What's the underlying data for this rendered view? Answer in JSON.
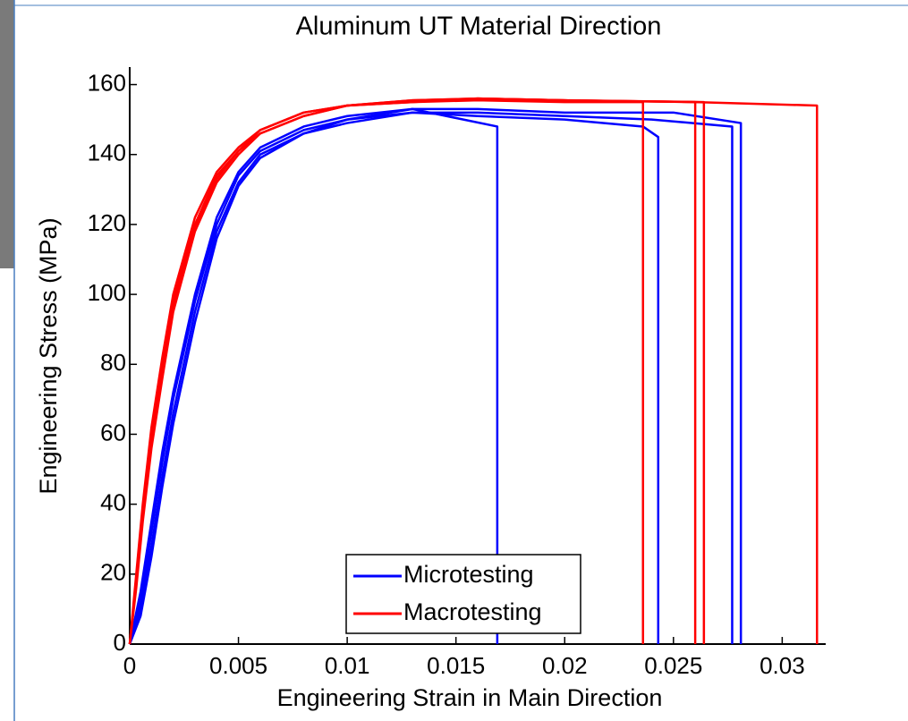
{
  "chart_data": {
    "type": "line",
    "title": "Aluminum UT Material Direction",
    "x_label": "Engineering Strain in Main Direction",
    "y_label": "Engineering Stress (MPa)",
    "xlim": [
      0,
      0.032
    ],
    "ylim": [
      0,
      165
    ],
    "xticks": [
      0,
      0.005,
      0.01,
      0.015,
      0.02,
      0.025,
      0.03
    ],
    "yticks": [
      0,
      20,
      40,
      60,
      80,
      100,
      120,
      140,
      160
    ],
    "grid": false,
    "legend": "lower center",
    "series": [
      {
        "name": "Microtesting",
        "color": "#0000ff",
        "curves": [
          {
            "x": [
              0,
              0.0005,
              0.001,
              0.0015,
              0.002,
              0.003,
              0.004,
              0.005,
              0.006,
              0.008,
              0.01,
              0.013,
              0.0169,
              0.0169
            ],
            "values": [
              0,
              15,
              35,
              55,
              72,
              100,
              122,
              135,
              142,
              148,
              151,
              153,
              148,
              0
            ]
          },
          {
            "x": [
              0,
              0.0005,
              0.001,
              0.0015,
              0.002,
              0.003,
              0.004,
              0.005,
              0.006,
              0.008,
              0.01,
              0.013,
              0.016,
              0.02,
              0.0236,
              0.0243,
              0.0243
            ],
            "values": [
              0,
              12,
              32,
              52,
              70,
              98,
              120,
              134,
              141,
              147,
              150,
              152,
              151,
              150,
              148,
              145,
              0
            ]
          },
          {
            "x": [
              0,
              0.0005,
              0.001,
              0.0015,
              0.002,
              0.003,
              0.004,
              0.005,
              0.006,
              0.008,
              0.01,
              0.013,
              0.016,
              0.02,
              0.024,
              0.0277,
              0.0277
            ],
            "values": [
              0,
              10,
              28,
              48,
              66,
              95,
              118,
              132,
              140,
              146,
              149,
              152,
              152,
              151,
              150,
              148,
              0
            ]
          },
          {
            "x": [
              0,
              0.0005,
              0.001,
              0.0015,
              0.002,
              0.003,
              0.004,
              0.005,
              0.006,
              0.008,
              0.01,
              0.013,
              0.016,
              0.02,
              0.025,
              0.0281,
              0.0281
            ],
            "values": [
              0,
              8,
              25,
              45,
              63,
              92,
              116,
              131,
              139,
              146,
              150,
              153,
              153,
              152,
              152,
              149,
              0
            ]
          }
        ]
      },
      {
        "name": "Macrotesting",
        "color": "#ff0000",
        "curves": [
          {
            "x": [
              0,
              0.0003,
              0.0006,
              0.001,
              0.0015,
              0.002,
              0.003,
              0.004,
              0.005,
              0.006,
              0.008,
              0.01,
              0.013,
              0.016,
              0.02,
              0.0236,
              0.0236
            ],
            "values": [
              0,
              20,
              40,
              62,
              82,
              100,
              122,
              135,
              142,
              147,
              152,
              154,
              155,
              155.5,
              155,
              155,
              0
            ]
          },
          {
            "x": [
              0,
              0.0003,
              0.0006,
              0.001,
              0.0015,
              0.002,
              0.003,
              0.004,
              0.005,
              0.006,
              0.008,
              0.01,
              0.013,
              0.016,
              0.02,
              0.026,
              0.026
            ],
            "values": [
              0,
              18,
              38,
              60,
              80,
              98,
              120,
              134,
              141,
              147,
              152,
              154,
              155,
              156,
              155.5,
              155,
              0
            ]
          },
          {
            "x": [
              0,
              0.0003,
              0.0006,
              0.001,
              0.0015,
              0.002,
              0.003,
              0.004,
              0.005,
              0.006,
              0.008,
              0.01,
              0.013,
              0.016,
              0.02,
              0.0264,
              0.0264
            ],
            "values": [
              0,
              17,
              36,
              58,
              78,
              96,
              119,
              133,
              141,
              146,
              151,
              154,
              155.5,
              156,
              155.5,
              155,
              0
            ]
          },
          {
            "x": [
              0,
              0.0003,
              0.0006,
              0.001,
              0.0015,
              0.002,
              0.003,
              0.004,
              0.005,
              0.006,
              0.008,
              0.01,
              0.013,
              0.016,
              0.02,
              0.026,
              0.0316,
              0.0316
            ],
            "values": [
              0,
              16,
              35,
              56,
              76,
              95,
              118,
              132,
              140,
              146,
              151,
              154,
              155.5,
              156,
              155.5,
              155,
              154,
              0
            ]
          }
        ]
      }
    ]
  }
}
